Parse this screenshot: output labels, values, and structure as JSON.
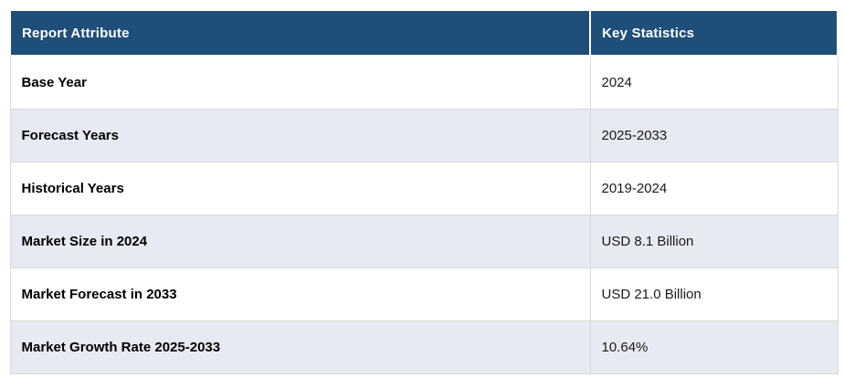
{
  "chart_data": {
    "type": "table",
    "columns": [
      "Report Attribute",
      "Key Statistics"
    ],
    "rows": [
      {
        "attribute": "Base Year",
        "value": "2024"
      },
      {
        "attribute": "Forecast Years",
        "value": "2025-2033"
      },
      {
        "attribute": "Historical Years",
        "value": "2019-2024"
      },
      {
        "attribute": "Market Size in 2024",
        "value": "USD 8.1 Billion"
      },
      {
        "attribute": "Market Forecast in 2033",
        "value": "USD 21.0 Billion"
      },
      {
        "attribute": "Market Growth Rate 2025-2033",
        "value": "10.64%"
      }
    ],
    "layout": {
      "legend": "none",
      "grid": "cell-borders"
    }
  },
  "colors": {
    "header_bg": "#1F4E79",
    "header_text": "#FFFFFF",
    "row_bg": "#FFFFFF",
    "alt_row_bg": "#E7E9F3",
    "border": "#D9D9D9",
    "attribute_text": "#000000",
    "value_text": "#1A1A1A"
  }
}
